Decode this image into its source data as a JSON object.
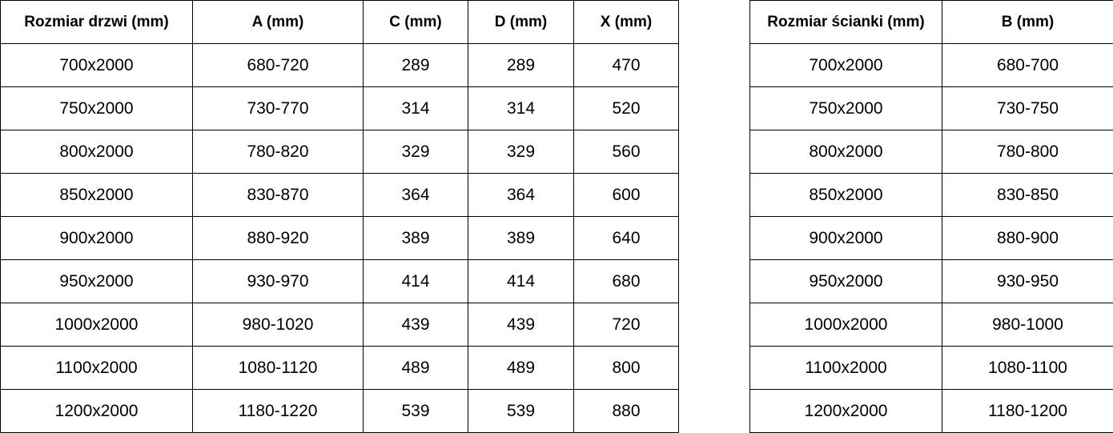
{
  "door_table": {
    "headers": [
      "Rozmiar drzwi (mm)",
      "A (mm)",
      "C (mm)",
      "D (mm)",
      "X (mm)"
    ],
    "rows": [
      [
        "700x2000",
        "680-720",
        "289",
        "289",
        "470"
      ],
      [
        "750x2000",
        "730-770",
        "314",
        "314",
        "520"
      ],
      [
        "800x2000",
        "780-820",
        "329",
        "329",
        "560"
      ],
      [
        "850x2000",
        "830-870",
        "364",
        "364",
        "600"
      ],
      [
        "900x2000",
        "880-920",
        "389",
        "389",
        "640"
      ],
      [
        "950x2000",
        "930-970",
        "414",
        "414",
        "680"
      ],
      [
        "1000x2000",
        "980-1020",
        "439",
        "439",
        "720"
      ],
      [
        "1100x2000",
        "1080-1120",
        "489",
        "489",
        "800"
      ],
      [
        "1200x2000",
        "1180-1220",
        "539",
        "539",
        "880"
      ]
    ]
  },
  "wall_table": {
    "headers": [
      "Rozmiar ścianki (mm)",
      "B (mm)"
    ],
    "rows": [
      [
        "700x2000",
        "680-700"
      ],
      [
        "750x2000",
        "730-750"
      ],
      [
        "800x2000",
        "780-800"
      ],
      [
        "850x2000",
        "830-850"
      ],
      [
        "900x2000",
        "880-900"
      ],
      [
        "950x2000",
        "930-950"
      ],
      [
        "1000x2000",
        "980-1000"
      ],
      [
        "1100x2000",
        "1080-1100"
      ],
      [
        "1200x2000",
        "1180-1200"
      ]
    ]
  }
}
